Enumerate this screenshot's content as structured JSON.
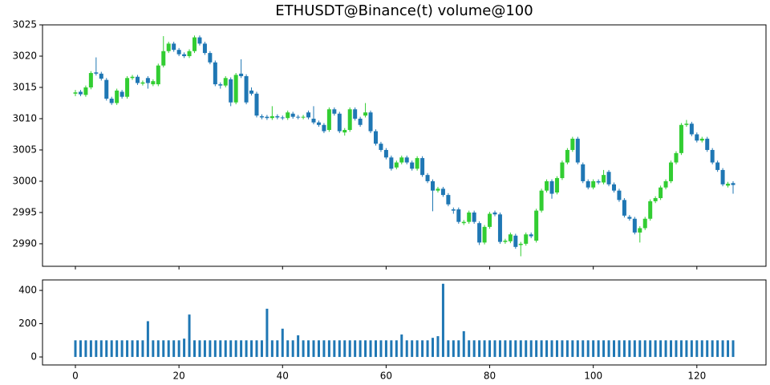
{
  "chart_data": [
    {
      "type": "candlestick",
      "title": "ETHUSDT@Binance(t) volume@100",
      "x": [
        0,
        1,
        2,
        3,
        4,
        5,
        6,
        7,
        8,
        9,
        10,
        11,
        12,
        13,
        14,
        15,
        16,
        17,
        18,
        19,
        20,
        21,
        22,
        23,
        24,
        25,
        26,
        27,
        28,
        29,
        30,
        31,
        32,
        33,
        34,
        35,
        36,
        37,
        38,
        39,
        40,
        41,
        42,
        43,
        44,
        45,
        46,
        47,
        48,
        49,
        50,
        51,
        52,
        53,
        54,
        55,
        56,
        57,
        58,
        59,
        60,
        61,
        62,
        63,
        64,
        65,
        66,
        67,
        68,
        69,
        70,
        71,
        72,
        73,
        74,
        75,
        76,
        77,
        78,
        79,
        80,
        81,
        82,
        83,
        84,
        85,
        86,
        87,
        88,
        89,
        90,
        91,
        92,
        93,
        94,
        95,
        96,
        97,
        98,
        99,
        100,
        101,
        102,
        103,
        104,
        105,
        106,
        107,
        108,
        109,
        110,
        111,
        112,
        113,
        114,
        115,
        116,
        117,
        118,
        119,
        120,
        121,
        122,
        123,
        124,
        125,
        126,
        127
      ],
      "open": [
        3014,
        3014.3,
        3013.8,
        3015,
        3017.4,
        3017.2,
        3016.2,
        3013.2,
        3012.5,
        3014.3,
        3013.5,
        3016.5,
        3016.7,
        3015.6,
        3016.5,
        3015.5,
        3015.5,
        3018.5,
        3020.8,
        3022,
        3021,
        3020.3,
        3020,
        3020.8,
        3023,
        3022,
        3020.5,
        3019,
        3015.5,
        3015.3,
        3016.3,
        3012.6,
        3017.2,
        3016.8,
        3014.5,
        3014,
        3010.4,
        3010.3,
        3010.1,
        3010.4,
        3010.2,
        3010.1,
        3010.8,
        3010.3,
        3010.2,
        3011,
        3010,
        3009.4,
        3009,
        3008.2,
        3011.5,
        3010.8,
        3007.8,
        3008.2,
        3011.5,
        3010,
        3010.5,
        3011,
        3008,
        3006,
        3005,
        3003.8,
        3002.2,
        3003,
        3003.8,
        3003,
        3002,
        3003.7,
        3001,
        3000,
        2998.5,
        2998.8,
        2997.8,
        2995.5,
        2995.5,
        2993.3,
        2993.5,
        2995,
        2993.3,
        2990.2,
        2992.7,
        2995,
        2994.7,
        2990.3,
        2990.4,
        2991.3,
        2989.8,
        2990,
        2991.5,
        2990.5,
        2995.3,
        2998.5,
        3000,
        2998.2,
        3000.5,
        3003,
        3005,
        3006.8,
        3002.7,
        3000,
        2999,
        3000,
        2999.8,
        3001.5,
        2999.5,
        2998.5,
        2997,
        2994.3,
        2994,
        2991.8,
        2992.5,
        2994,
        2996.8,
        2997.3,
        2999,
        3000,
        3003,
        3004.5,
        3009,
        3009.2,
        3007.5,
        3006.5,
        3006.8,
        3005,
        3003,
        3001.8,
        2999.3,
        2999.7
      ],
      "high": [
        3014.6,
        3014.6,
        3015.3,
        3017.6,
        3019.8,
        3017.5,
        3016.5,
        3013.5,
        3014.8,
        3014.6,
        3016.8,
        3017,
        3017,
        3016.1,
        3016.8,
        3016.3,
        3018.8,
        3023.2,
        3022.3,
        3022.3,
        3021.3,
        3020.6,
        3021.1,
        3023.3,
        3023.3,
        3022.3,
        3020.8,
        3019.3,
        3015.8,
        3016.8,
        3016.6,
        3017.3,
        3019.5,
        3017.1,
        3015,
        3014.3,
        3010.7,
        3010.6,
        3012,
        3010.7,
        3010.5,
        3011.3,
        3011.1,
        3010.6,
        3010.6,
        3011.3,
        3012,
        3009.7,
        3009.3,
        3011.8,
        3011.8,
        3011.1,
        3008.5,
        3011.8,
        3011.8,
        3010.3,
        3012.5,
        3011.3,
        3008.3,
        3006.3,
        3005.3,
        3004.1,
        3003.3,
        3004.1,
        3004.1,
        3003.3,
        3004,
        3004,
        3001.3,
        3000.3,
        2999.1,
        2999.1,
        2998.1,
        2995.8,
        2995.8,
        2993.8,
        2995.3,
        2995.3,
        2993.6,
        2993,
        2995.1,
        2995.3,
        2995,
        2990.8,
        2991.8,
        2991.6,
        2990.3,
        2991.8,
        2991.8,
        2995.6,
        2998.8,
        3000.3,
        3000.3,
        3000.8,
        3003.3,
        3005.3,
        3007.1,
        3007.1,
        3003,
        3000.3,
        3000.3,
        3000.3,
        3001.8,
        3001.8,
        2999.8,
        2998.8,
        2997.3,
        2994.6,
        2994.3,
        2992.8,
        2994.3,
        2997.1,
        2997.6,
        2999.3,
        3000.3,
        3003.3,
        3004.8,
        3009.3,
        3009.8,
        3009.5,
        3007.8,
        3007.1,
        3007.1,
        3005.3,
        3003.3,
        3002.1,
        2999.9,
        3000
      ],
      "low": [
        3013.6,
        3013.6,
        3013.5,
        3014.7,
        3016.9,
        3016.1,
        3012.9,
        3012.2,
        3012.2,
        3013.2,
        3013.2,
        3016.2,
        3015.4,
        3015.3,
        3014.8,
        3015.2,
        3015.2,
        3018.2,
        3020.5,
        3020.7,
        3020,
        3019.7,
        3019.7,
        3020.5,
        3021.7,
        3020.2,
        3018.7,
        3015.2,
        3014.8,
        3015,
        3012,
        3012.3,
        3016.5,
        3012.3,
        3013.7,
        3010.2,
        3009.9,
        3009.8,
        3009.8,
        3009.9,
        3009.8,
        3009.8,
        3010,
        3009.9,
        3009.9,
        3009.9,
        3009.1,
        3008.7,
        3007.7,
        3007.9,
        3010.5,
        3007.7,
        3007.3,
        3007.9,
        3009.7,
        3008.7,
        3010.2,
        3007.7,
        3005.7,
        3004.7,
        3003.5,
        3001.7,
        3001.9,
        3002.7,
        3002.7,
        3001.7,
        3001.7,
        3000.7,
        2999.7,
        2995.2,
        2998.2,
        2997.5,
        2996,
        2994.8,
        2993.2,
        2993,
        2993.2,
        2993.2,
        2989.8,
        2989.9,
        2992.4,
        2994.4,
        2990,
        2990,
        2990.1,
        2989.2,
        2988,
        2989.7,
        2990.9,
        2990.2,
        2995,
        2998.2,
        2997.2,
        2997.9,
        3000.2,
        3002.7,
        3004.7,
        3002.7,
        2999.7,
        2998.7,
        2998.7,
        2999.5,
        2999.5,
        2999.2,
        2998.2,
        2996.7,
        2994.2,
        2993.7,
        2991.5,
        2990.2,
        2992.2,
        2993.7,
        2996.5,
        2997,
        2998.7,
        2999.7,
        3002.7,
        3004.2,
        3008.7,
        3007.2,
        3006.2,
        3006.2,
        3004.7,
        3002.7,
        3001.5,
        2999.2,
        2999,
        2998
      ],
      "close": [
        3014.2,
        3013.9,
        3015,
        3017.3,
        3017.2,
        3016.4,
        3013.2,
        3012.5,
        3014.5,
        3013.5,
        3016.5,
        3016.7,
        3015.7,
        3015.8,
        3015.7,
        3016,
        3018.5,
        3020.8,
        3022,
        3021,
        3020.3,
        3020,
        3020.8,
        3023,
        3022,
        3020.5,
        3019,
        3015.5,
        3015.3,
        3016.5,
        3012.6,
        3017,
        3016.8,
        3012.6,
        3014,
        3010.5,
        3010.2,
        3010.1,
        3010.4,
        3010.2,
        3010.1,
        3011,
        3010.3,
        3010.2,
        3010.3,
        3010.2,
        3009.4,
        3009,
        3008,
        3011.5,
        3010.8,
        3008,
        3008.2,
        3011.5,
        3010,
        3009,
        3011,
        3008,
        3006,
        3005,
        3003.8,
        3002,
        3003,
        3003.8,
        3003,
        3002,
        3003.7,
        3001,
        3000,
        2998.5,
        2998.8,
        2997.8,
        2996.3,
        2995.3,
        2993.5,
        2993.5,
        2995,
        2993.5,
        2990.2,
        2992.7,
        2994.8,
        2994.7,
        2990.3,
        2990.5,
        2991.5,
        2989.5,
        2990,
        2991.5,
        2991.2,
        2995.3,
        2998.5,
        3000,
        2998,
        3000.5,
        3003,
        3005,
        3006.8,
        3003,
        3000,
        2999,
        3000,
        2999.8,
        3001,
        2999.5,
        2998.5,
        2997,
        2994.5,
        2994,
        2991.8,
        2992.5,
        2994,
        2996.8,
        2997.3,
        2999,
        3000,
        3003,
        3004.5,
        3009,
        3009.2,
        3007.5,
        3006.5,
        3006.8,
        3005,
        3003,
        3001.8,
        2999.5,
        2999.6,
        2999.4
      ],
      "up_color": "#32cd32",
      "down_color": "#1f77b4",
      "xlim": [
        -6.35,
        133.35
      ],
      "ylim": [
        2986.4,
        3025
      ],
      "yticks": [
        2990,
        2995,
        3000,
        3005,
        3010,
        3015,
        3020,
        3025
      ]
    },
    {
      "type": "bar",
      "x": [
        0,
        1,
        2,
        3,
        4,
        5,
        6,
        7,
        8,
        9,
        10,
        11,
        12,
        13,
        14,
        15,
        16,
        17,
        18,
        19,
        20,
        21,
        22,
        23,
        24,
        25,
        26,
        27,
        28,
        29,
        30,
        31,
        32,
        33,
        34,
        35,
        36,
        37,
        38,
        39,
        40,
        41,
        42,
        43,
        44,
        45,
        46,
        47,
        48,
        49,
        50,
        51,
        52,
        53,
        54,
        55,
        56,
        57,
        58,
        59,
        60,
        61,
        62,
        63,
        64,
        65,
        66,
        67,
        68,
        69,
        70,
        71,
        72,
        73,
        74,
        75,
        76,
        77,
        78,
        79,
        80,
        81,
        82,
        83,
        84,
        85,
        86,
        87,
        88,
        89,
        90,
        91,
        92,
        93,
        94,
        95,
        96,
        97,
        98,
        99,
        100,
        101,
        102,
        103,
        104,
        105,
        106,
        107,
        108,
        109,
        110,
        111,
        112,
        113,
        114,
        115,
        116,
        117,
        118,
        119,
        120,
        121,
        122,
        123,
        124,
        125,
        126,
        127
      ],
      "values": [
        100,
        100,
        100,
        100,
        100,
        100,
        100,
        100,
        100,
        100,
        100,
        100,
        100,
        100,
        215,
        100,
        100,
        100,
        100,
        100,
        100,
        110,
        255,
        100,
        100,
        100,
        100,
        100,
        100,
        100,
        100,
        100,
        100,
        100,
        100,
        100,
        100,
        290,
        100,
        100,
        170,
        100,
        100,
        130,
        100,
        100,
        100,
        100,
        100,
        100,
        100,
        100,
        100,
        100,
        100,
        100,
        100,
        100,
        100,
        100,
        100,
        100,
        100,
        135,
        100,
        100,
        100,
        100,
        100,
        115,
        125,
        440,
        100,
        100,
        100,
        155,
        100,
        100,
        100,
        100,
        100,
        100,
        100,
        100,
        100,
        100,
        100,
        100,
        100,
        100,
        100,
        100,
        100,
        100,
        100,
        100,
        100,
        100,
        100,
        100,
        100,
        100,
        100,
        100,
        100,
        100,
        100,
        100,
        100,
        100,
        100,
        100,
        100,
        100,
        100,
        100,
        100,
        100,
        100,
        100,
        100,
        100,
        100,
        100,
        100,
        100,
        100,
        100
      ],
      "color": "#1f77b4",
      "xlim": [
        -6.35,
        133.35
      ],
      "ylim": [
        -48,
        463
      ],
      "xticks": [
        0,
        20,
        40,
        60,
        80,
        100,
        120
      ],
      "yticks": [
        0,
        200,
        400
      ]
    }
  ]
}
